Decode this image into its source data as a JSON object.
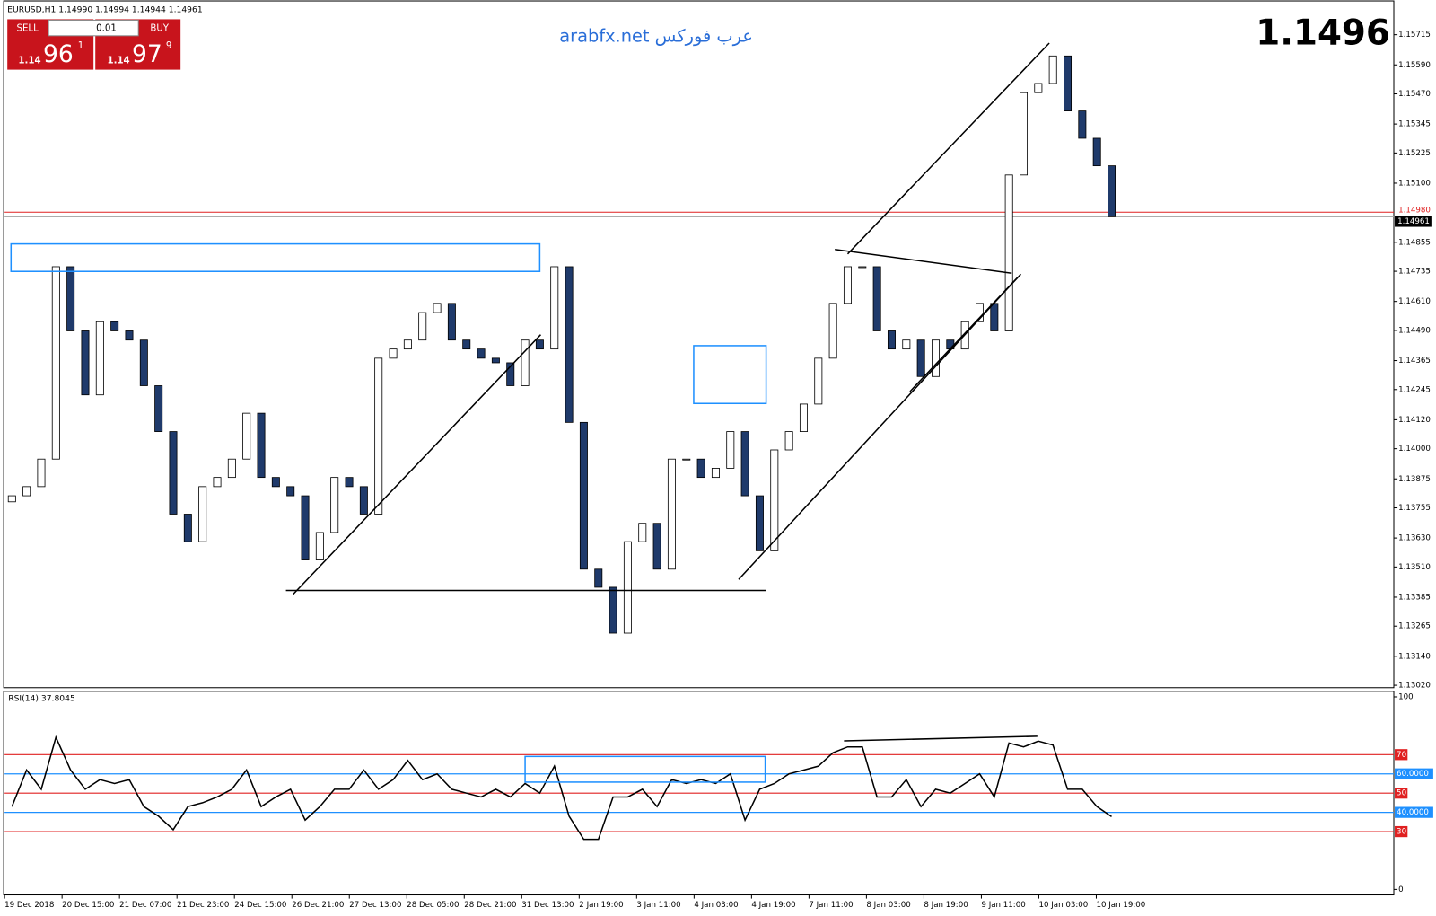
{
  "ui": {
    "header": "EURUSD,H1  1.14990 1.14994 1.14944 1.14961",
    "watermark": "arabfx.net عرب فوركس",
    "big_price": "1.1496",
    "trade_panel": {
      "sell": "SELL",
      "lot": "0.01",
      "buy": "BUY",
      "bid_prefix": "1.14",
      "bid_main": "96",
      "bid_sup": "1",
      "ask_prefix": "1.14",
      "ask_main": "97",
      "ask_sup": "9"
    },
    "x_labels": [
      "19 Dec 2018",
      "20 Dec 15:00",
      "21 Dec 07:00",
      "21 Dec 23:00",
      "24 Dec 15:00",
      "26 Dec 21:00",
      "27 Dec 13:00",
      "28 Dec 05:00",
      "28 Dec 21:00",
      "31 Dec 13:00",
      "2 Jan 19:00",
      "3 Jan 11:00",
      "4 Jan 03:00",
      "4 Jan 19:00",
      "7 Jan 11:00",
      "8 Jan 03:00",
      "8 Jan 19:00",
      "9 Jan 11:00",
      "10 Jan 03:00",
      "10 Jan 19:00"
    ]
  },
  "chart_data": [
    {
      "type": "candlestick",
      "up_color": "#ffffff",
      "down_color": "#1f3a6b",
      "edge_color": "#000000",
      "open": [
        1.1378,
        1.13805,
        1.13843,
        1.13957,
        1.14754,
        1.14488,
        1.14223,
        1.14526,
        1.14488,
        1.1445,
        1.14261,
        1.14071,
        1.13729,
        1.13615,
        1.13843,
        1.13881,
        1.13957,
        1.14147,
        1.13881,
        1.13843,
        1.13805,
        1.13539,
        1.13653,
        1.13881,
        1.13843,
        1.13729,
        1.14375,
        1.14413,
        1.1445,
        1.14564,
        1.14602,
        1.1445,
        1.14413,
        1.14375,
        1.14356,
        1.14261,
        1.1445,
        1.14413,
        1.14754,
        1.14109,
        1.13501,
        1.13426,
        1.13236,
        1.13615,
        1.13691,
        1.13501,
        1.13957,
        1.13957,
        1.13881,
        1.13919,
        1.14071,
        1.13805,
        1.13577,
        1.13995,
        1.14071,
        1.14185,
        1.14375,
        1.14602,
        1.14754,
        1.14754,
        1.14488,
        1.14413,
        1.1445,
        1.14299,
        1.1445,
        1.14413,
        1.14526,
        1.14602,
        1.14488,
        1.15134,
        1.15475,
        1.15513,
        1.15627,
        1.15399,
        1.15286,
        1.15172
      ],
      "close": [
        1.13805,
        1.13843,
        1.13957,
        1.14754,
        1.14488,
        1.14223,
        1.14526,
        1.14488,
        1.1445,
        1.14261,
        1.14071,
        1.13729,
        1.13615,
        1.13843,
        1.13881,
        1.13957,
        1.14147,
        1.13881,
        1.13843,
        1.13805,
        1.13539,
        1.13653,
        1.13881,
        1.13843,
        1.13729,
        1.14375,
        1.14413,
        1.1445,
        1.14564,
        1.14602,
        1.1445,
        1.14413,
        1.14375,
        1.14356,
        1.14261,
        1.1445,
        1.14413,
        1.14754,
        1.14109,
        1.13501,
        1.13426,
        1.13236,
        1.13615,
        1.13691,
        1.13501,
        1.13957,
        1.13957,
        1.13881,
        1.13919,
        1.14071,
        1.13805,
        1.13577,
        1.13995,
        1.14071,
        1.14185,
        1.14375,
        1.14602,
        1.14754,
        1.14754,
        1.14488,
        1.14413,
        1.1445,
        1.14299,
        1.1445,
        1.14413,
        1.14526,
        1.14602,
        1.14488,
        1.15134,
        1.15475,
        1.15513,
        1.15627,
        1.15399,
        1.15286,
        1.15172,
        1.14961
      ],
      "ylim": [
        1.1301,
        1.15855
      ],
      "yticks": [
        1.15715,
        {
          "value": 1.1559,
          "label": "1.15590"
        },
        {
          "value": 1.1547,
          "label": "1.15470"
        },
        1.15345,
        1.15225,
        {
          "value": 1.151,
          "label": "1.15100"
        },
        1.14855,
        1.14735,
        {
          "value": 1.1461,
          "label": "1.14610"
        },
        {
          "value": 1.1449,
          "label": "1.14490"
        },
        1.14365,
        1.14245,
        {
          "value": 1.1412,
          "label": "1.14120"
        },
        {
          "value": 1.14,
          "label": "1.14000"
        },
        1.13875,
        1.13755,
        {
          "value": 1.1363,
          "label": "1.13630"
        },
        {
          "value": 1.1351,
          "label": "1.13510"
        },
        1.13385,
        1.13265,
        {
          "value": 1.1314,
          "label": "1.13140"
        },
        {
          "value": 1.1302,
          "label": "1.13020"
        }
      ],
      "price_lines": [
        {
          "value": 1.1498,
          "label": "1.14980",
          "color": "#e02020"
        },
        {
          "value": 1.14961,
          "color": "#a0a0a0"
        }
      ]
    },
    {
      "type": "line",
      "title": "RSI(14) 37.8045",
      "color": "#000000",
      "values": [
        43,
        62,
        52,
        79,
        62,
        52,
        57,
        55,
        57,
        43,
        38,
        31,
        43,
        45,
        48,
        52,
        62,
        43,
        48,
        52,
        36,
        43,
        52,
        52,
        62,
        52,
        57,
        67,
        57,
        60,
        52,
        50,
        48,
        52,
        48,
        55,
        50,
        64,
        38,
        26,
        26,
        48,
        48,
        52,
        43,
        57,
        55,
        57,
        55,
        60,
        36,
        52,
        55,
        60,
        62,
        64,
        71,
        74,
        74,
        48,
        48,
        57,
        43,
        52,
        50,
        55,
        60,
        48,
        76,
        74,
        77,
        75,
        52,
        52,
        43,
        37.8045
      ],
      "ylim": [
        0,
        100
      ],
      "yticks": [
        100,
        0
      ],
      "levels": [
        {
          "value": 70,
          "color": "#e02020"
        },
        {
          "value": 60,
          "label": "60.0000",
          "color": "#1e90ff"
        },
        {
          "value": 50,
          "color": "#e02020"
        },
        {
          "value": 40,
          "label": "40.0000",
          "color": "#1e90ff"
        },
        {
          "value": 30,
          "color": "#e02020"
        }
      ]
    }
  ]
}
